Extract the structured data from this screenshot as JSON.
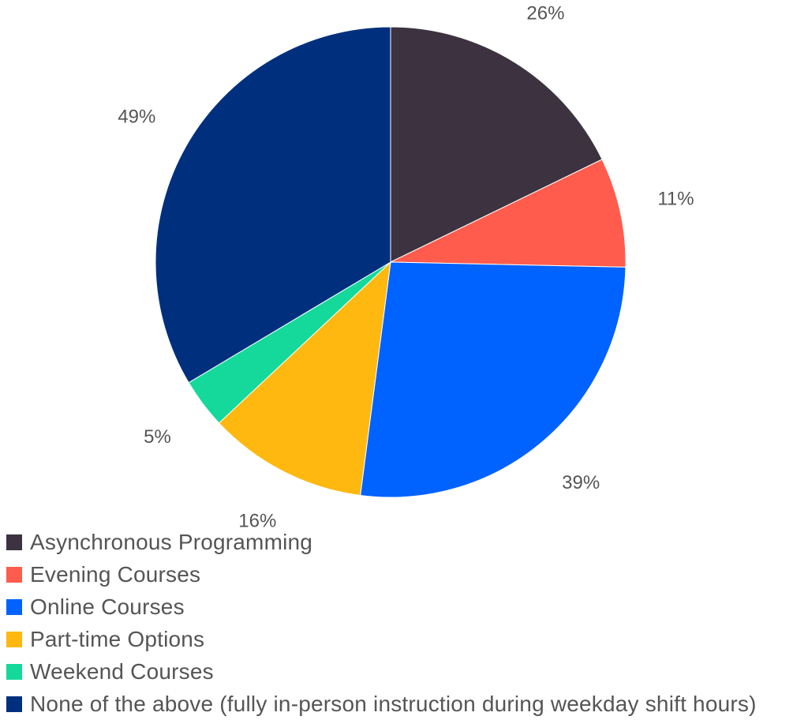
{
  "chart_data": {
    "type": "pie",
    "title": "",
    "legend_position": "bottom-left",
    "slices": [
      {
        "label": "Asynchronous Programming",
        "value": 26,
        "display": "26%",
        "color": "#3d3240"
      },
      {
        "label": "Evening Courses",
        "value": 11,
        "display": "11%",
        "color": "#ff5c4d"
      },
      {
        "label": "Online Courses",
        "value": 39,
        "display": "39%",
        "color": "#0062ff"
      },
      {
        "label": "Part-time Options",
        "value": 16,
        "display": "16%",
        "color": "#ffb80f"
      },
      {
        "label": "Weekend Courses",
        "value": 5,
        "display": "5%",
        "color": "#14d99a"
      },
      {
        "label": "None of the above (fully in-person instruction during weekday shift hours)",
        "value": 49,
        "display": "49%",
        "color": "#00307d"
      }
    ]
  },
  "colors": {
    "label_text": "#555555",
    "slice_border": "#ffffff"
  }
}
